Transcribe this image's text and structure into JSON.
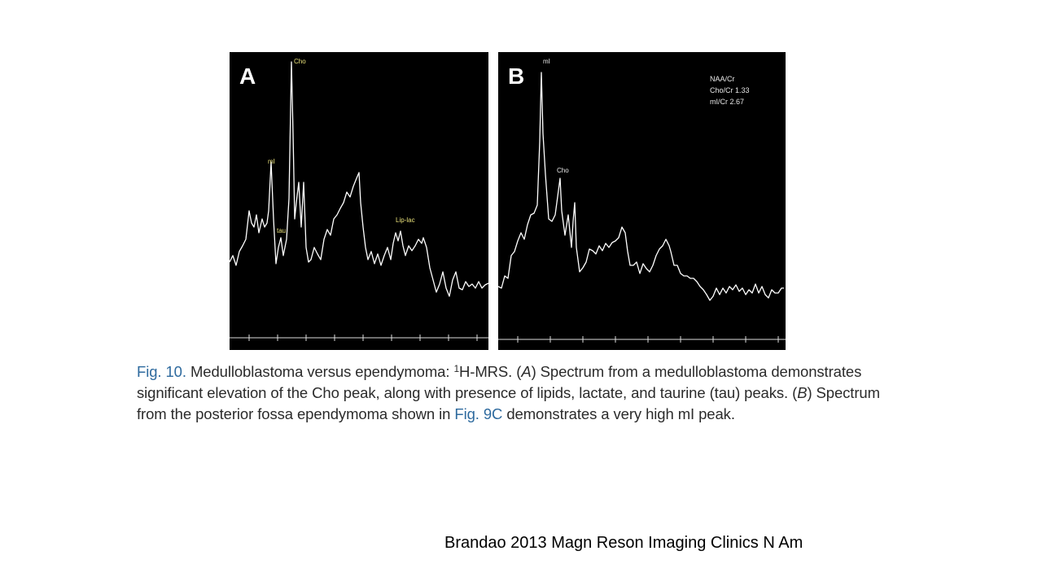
{
  "figure": {
    "panel_a": {
      "letter": "A",
      "peak_labels": {
        "cho": "Cho",
        "mi": "mI",
        "tau": "tau",
        "lip_lac": "Lip-lac"
      }
    },
    "panel_b": {
      "letter": "B",
      "peak_labels": {
        "mi": "mI",
        "cho": "Cho"
      },
      "ratios": {
        "naa_cr": "NAA/Cr",
        "cho_cr": "Cho/Cr 1.33",
        "mi_cr": "mI/Cr 2.67"
      }
    },
    "caption": {
      "fig_label": "Fig. 10.",
      "part1": " Medulloblastoma versus ependymoma: ",
      "sup": "1",
      "part2": "H-MRS. (",
      "a_ref": "A",
      "part3": ") Spectrum from a medulloblastoma demonstrates significant elevation of the Cho peak, along with presence of lipids, lactate, and taurine (tau) peaks. (",
      "b_ref": "B",
      "part4": ") Spectrum from the posterior fossa ependymoma shown in ",
      "fig_ref": "Fig. 9C",
      "part5": " demonstrates a very high mI peak."
    }
  },
  "citation": "Brandao 2013  Magn Reson Imaging Clinics N Am",
  "colors": {
    "panel_background": "#000000",
    "trace": "#ffffff",
    "label_yellow": "#e8e07a",
    "caption_blue": "#2e6a9e",
    "caption_text": "#2b2b2b"
  }
}
